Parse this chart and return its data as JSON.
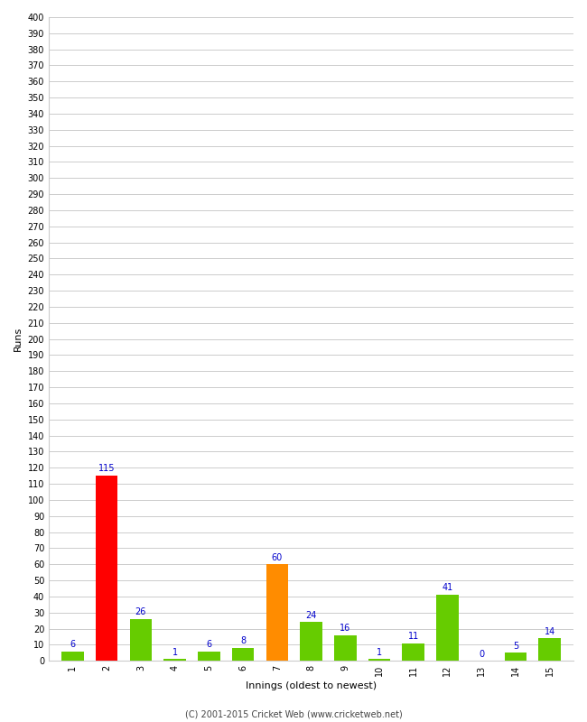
{
  "xlabel": "Innings (oldest to newest)",
  "ylabel": "Runs",
  "categories": [
    1,
    2,
    3,
    4,
    5,
    6,
    7,
    8,
    9,
    10,
    11,
    12,
    13,
    14,
    15
  ],
  "values": [
    6,
    115,
    26,
    1,
    6,
    8,
    60,
    24,
    16,
    1,
    11,
    41,
    0,
    5,
    14
  ],
  "bar_colors": [
    "#66cc00",
    "#ff0000",
    "#66cc00",
    "#66cc00",
    "#66cc00",
    "#66cc00",
    "#ff8c00",
    "#66cc00",
    "#66cc00",
    "#66cc00",
    "#66cc00",
    "#66cc00",
    "#66cc00",
    "#66cc00",
    "#66cc00"
  ],
  "ylim": [
    0,
    400
  ],
  "ytick_step": 10,
  "label_color": "#0000cc",
  "background_color": "#ffffff",
  "grid_color": "#cccccc",
  "footer": "(C) 2001-2015 Cricket Web (www.cricketweb.net)",
  "bar_width": 0.65,
  "xlabel_fontsize": 8,
  "ylabel_fontsize": 8,
  "tick_fontsize": 7,
  "label_fontsize": 7,
  "footer_fontsize": 7
}
